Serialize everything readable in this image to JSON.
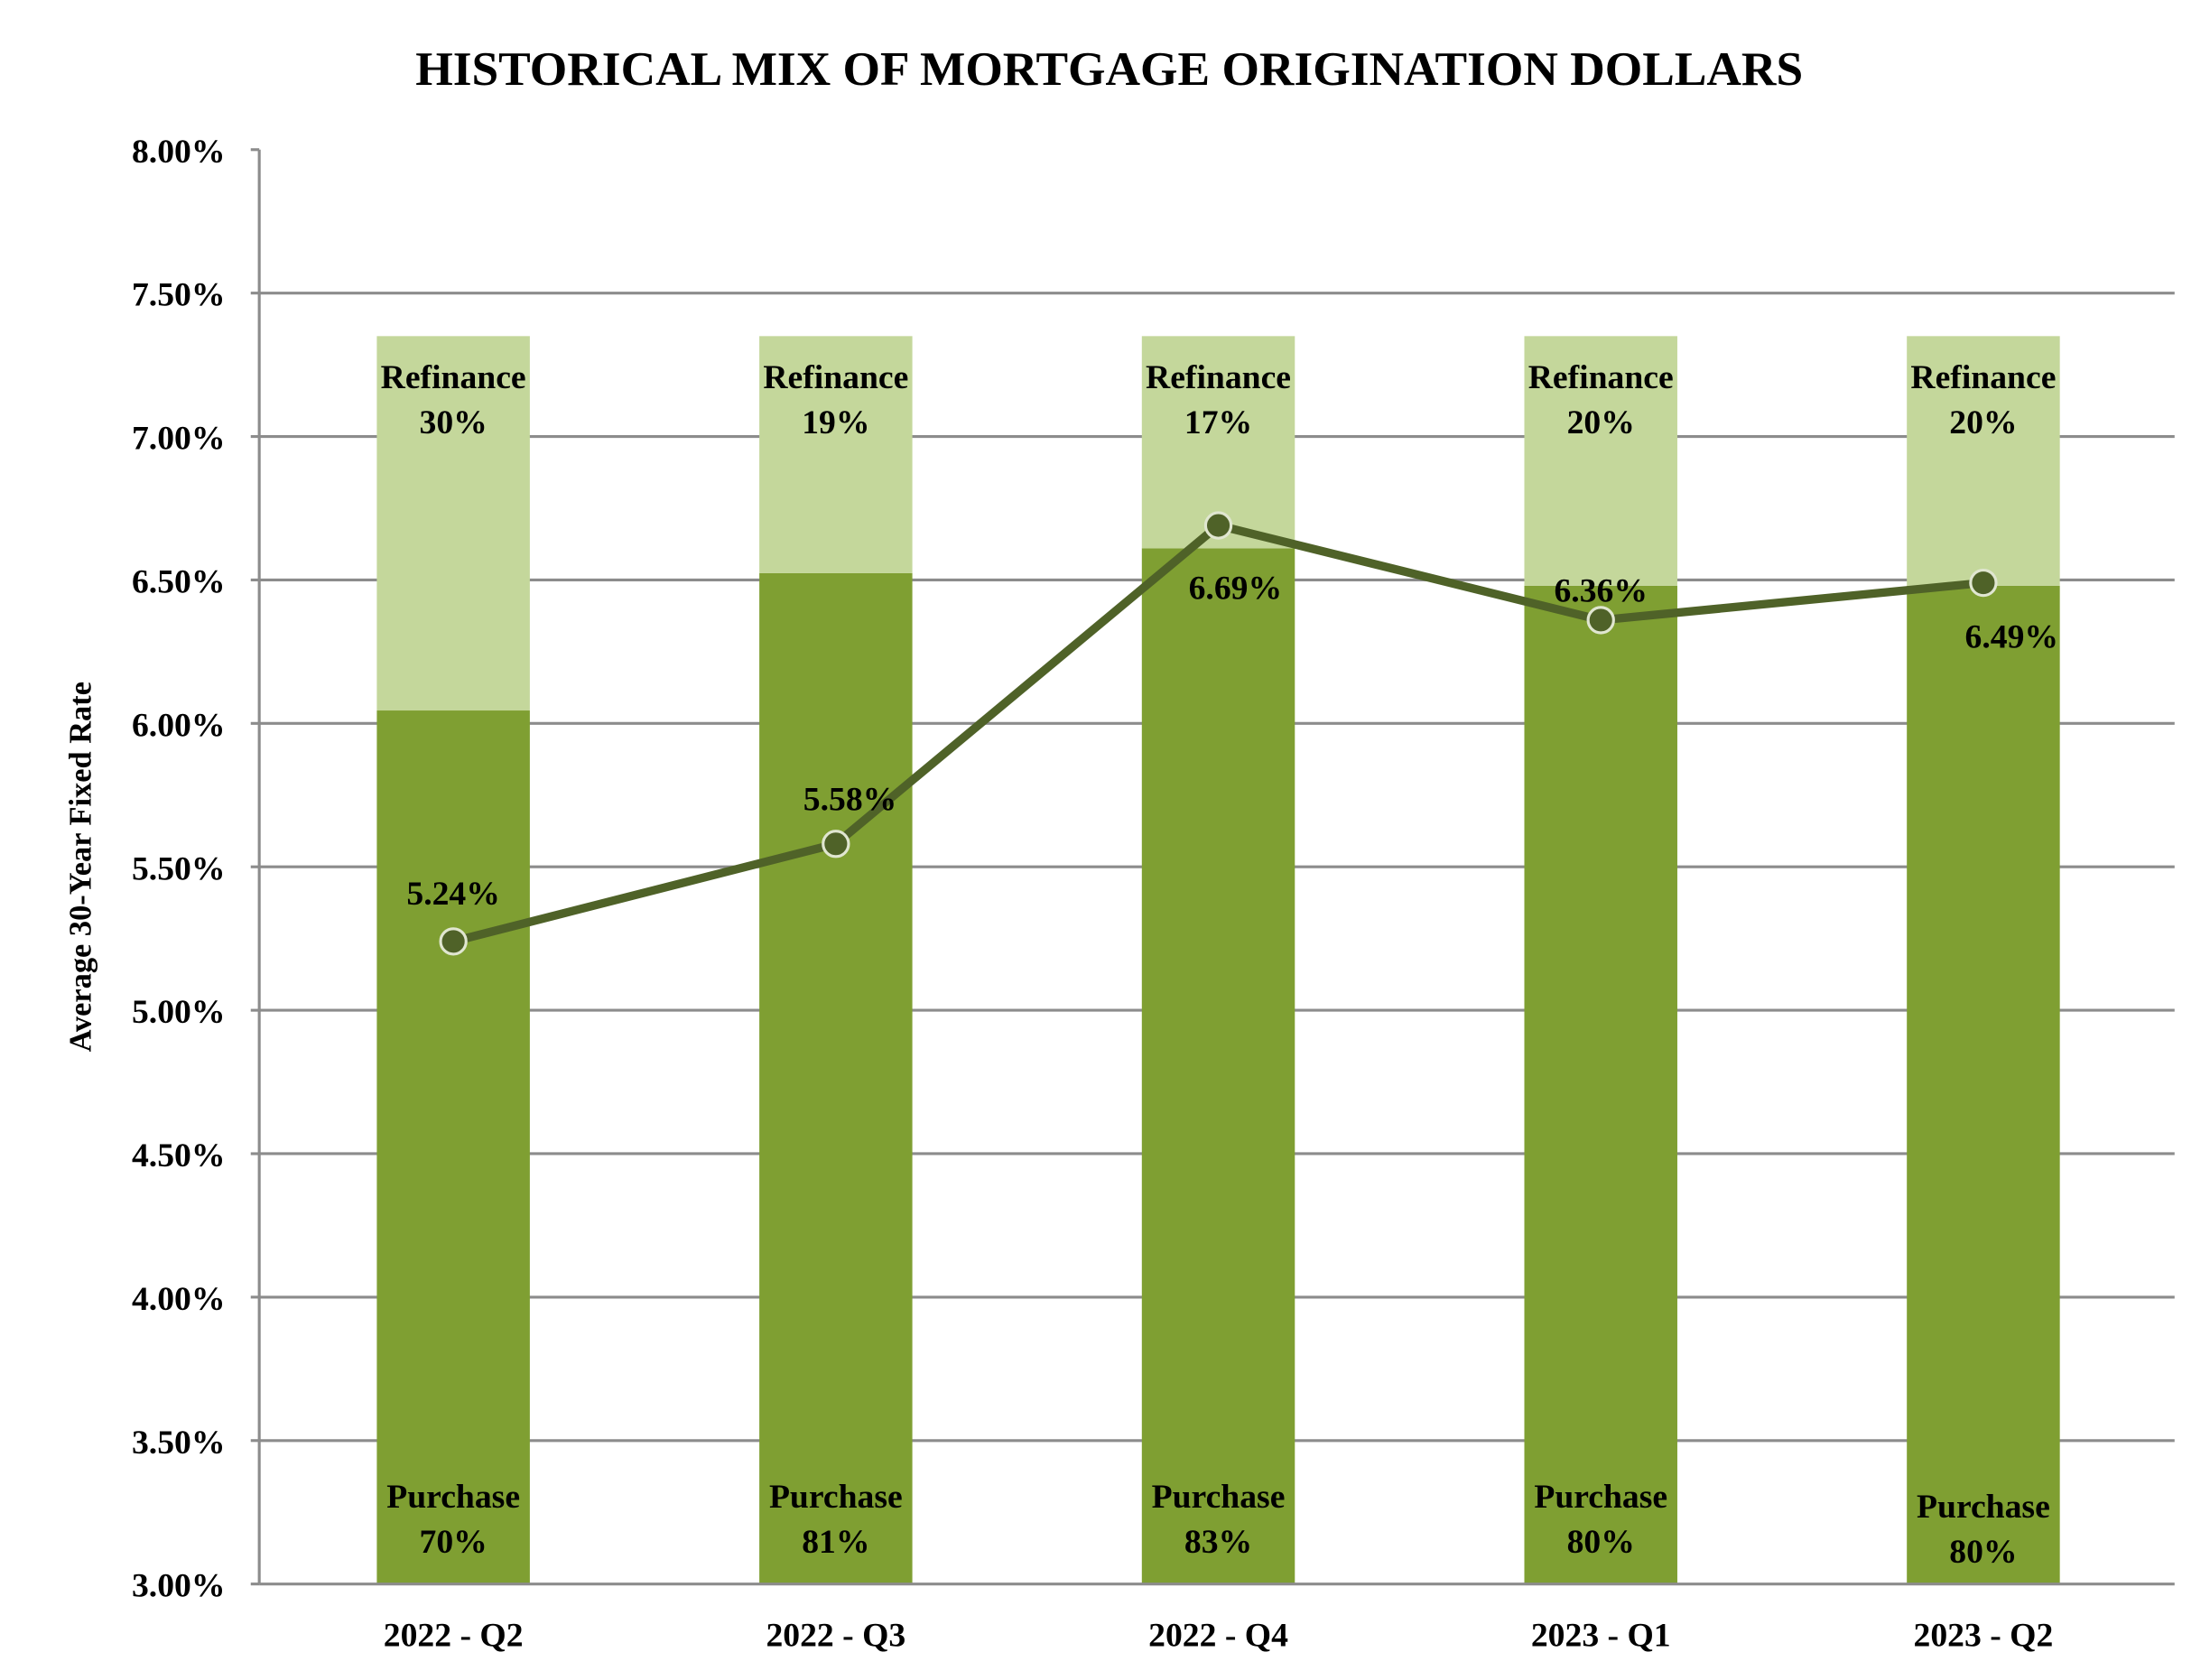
{
  "chart_data": {
    "type": "bar+line",
    "title": "HISTORICAL MIX OF MORTGAGE ORIGINATION DOLLARS",
    "ylabel": "Average 30-Year Fixed Rate",
    "xlabel": "",
    "ylim": [
      3.0,
      8.0
    ],
    "y_ticks": [
      "3.00%",
      "3.50%",
      "4.00%",
      "4.50%",
      "5.00%",
      "5.50%",
      "6.00%",
      "6.50%",
      "7.00%",
      "7.50%",
      "8.00%"
    ],
    "grid": true,
    "categories": [
      "2022 - Q2",
      "2022 - Q3",
      "2022 - Q4",
      "2023 - Q1",
      "2023 - Q2"
    ],
    "bars": {
      "stacked_percent": true,
      "series": [
        {
          "name": "Purchase",
          "values": [
            70,
            81,
            83,
            80,
            80
          ],
          "color": "#7f9f32"
        },
        {
          "name": "Refinance",
          "values": [
            30,
            19,
            17,
            20,
            20
          ],
          "color": "#c4d79b"
        }
      ]
    },
    "line": {
      "values": [
        5.24,
        5.58,
        6.69,
        6.36,
        6.49
      ],
      "labels": [
        "5.24%",
        "5.58%",
        "6.69%",
        "6.36%",
        "6.49%"
      ],
      "color": "#4f6228"
    }
  }
}
